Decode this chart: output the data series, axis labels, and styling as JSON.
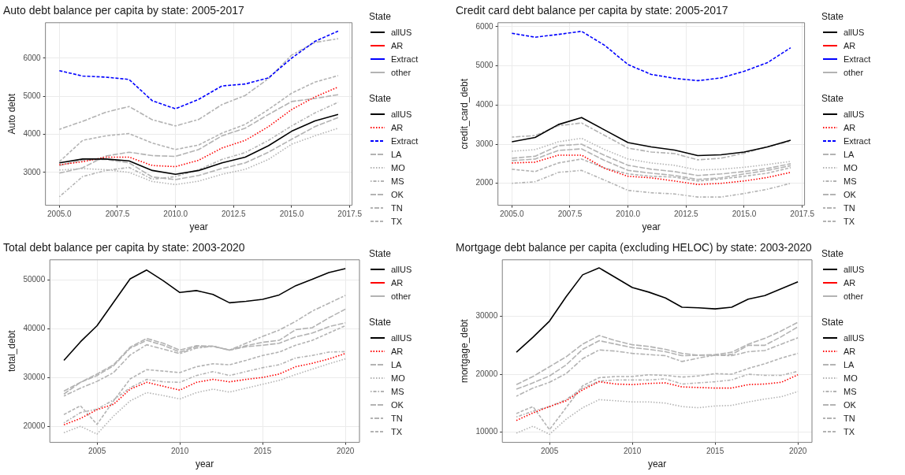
{
  "chart_data": [
    {
      "type": "line",
      "title": "Auto debt balance per capita by state: 2005-2017",
      "xlabel": "year",
      "ylabel": "Auto debt",
      "legend_title": "State",
      "grid": true,
      "legend": "right",
      "x": [
        2005,
        2006,
        2007,
        2008,
        2009,
        2010,
        2011,
        2012,
        2013,
        2014,
        2015,
        2016,
        2017
      ],
      "xlim": [
        2004.4,
        2017.6
      ],
      "xticks": [
        {
          "value": 2005,
          "label": "2005.0"
        },
        {
          "value": 2007.5,
          "label": "2007.5"
        },
        {
          "value": 2010,
          "label": "2010.0"
        },
        {
          "value": 2012.5,
          "label": "2012.5"
        },
        {
          "value": 2015,
          "label": "2015.0"
        },
        {
          "value": 2017.5,
          "label": "2017.5"
        }
      ],
      "ylim": [
        2136,
        6930
      ],
      "yticks": [
        3000,
        4000,
        5000,
        6000
      ],
      "annotations": [
        "other"
      ],
      "series": [
        {
          "name": "allUS",
          "color": "#000000",
          "line_style": "solid",
          "values": [
            3250,
            3350,
            3350,
            3300,
            3050,
            2950,
            3050,
            3250,
            3400,
            3700,
            4080,
            4350,
            4520
          ]
        },
        {
          "name": "AR",
          "color": "#ff0000",
          "line_style": "dotted",
          "values": [
            3200,
            3280,
            3400,
            3400,
            3180,
            3150,
            3320,
            3640,
            3840,
            4200,
            4650,
            4980,
            5240
          ]
        },
        {
          "name": "Extract",
          "color": "#0000ff",
          "line_style": "dashed",
          "values": [
            5670,
            5530,
            5500,
            5440,
            4880,
            4670,
            4920,
            5270,
            5320,
            5480,
            6000,
            6440,
            6710
          ]
        },
        {
          "name": "LA",
          "color": "#b3b3b3",
          "line_style": "longdash",
          "values": [
            2980,
            3120,
            3430,
            3530,
            3440,
            3420,
            3600,
            3960,
            4160,
            4520,
            4860,
            4940,
            5040
          ]
        },
        {
          "name": "MO",
          "color": "#b3b3b3",
          "line_style": "dotted",
          "values": [
            3060,
            3100,
            3070,
            3000,
            2760,
            2680,
            2770,
            2950,
            3080,
            3340,
            3740,
            3960,
            4160
          ]
        },
        {
          "name": "MS",
          "color": "#b3b3b3",
          "line_style": "dotdash",
          "values": [
            2360,
            2890,
            3050,
            3130,
            2820,
            2890,
            3070,
            3340,
            3520,
            3840,
            4220,
            4560,
            4840
          ]
        },
        {
          "name": "OK",
          "color": "#b3b3b3",
          "line_style": "longdash",
          "values": [
            3180,
            3320,
            3340,
            3250,
            2880,
            2810,
            2920,
            3100,
            3250,
            3530,
            3870,
            4200,
            4440
          ]
        },
        {
          "name": "TN",
          "color": "#b3b3b3",
          "line_style": "twodash",
          "values": [
            4130,
            4340,
            4580,
            4730,
            4380,
            4220,
            4390,
            4780,
            5020,
            5460,
            6080,
            6410,
            6510
          ]
        },
        {
          "name": "TX",
          "color": "#b3b3b3",
          "line_style": "dashed",
          "values": [
            3280,
            3840,
            3960,
            4020,
            3770,
            3600,
            3720,
            4030,
            4260,
            4650,
            5080,
            5370,
            5540
          ]
        }
      ]
    },
    {
      "type": "line",
      "title": "Credit card debt balance per capita by state: 2005-2017",
      "xlabel": "year",
      "ylabel": "credit_card_debt",
      "legend_title": "State",
      "grid": true,
      "legend": "right",
      "x": [
        2005,
        2006,
        2007,
        2008,
        2009,
        2010,
        2011,
        2012,
        2013,
        2014,
        2015,
        2016,
        2017
      ],
      "xlim": [
        2004.4,
        2017.6
      ],
      "xticks": [
        {
          "value": 2005,
          "label": "2005.0"
        },
        {
          "value": 2007.5,
          "label": "2007.5"
        },
        {
          "value": 2010,
          "label": "2010.0"
        },
        {
          "value": 2012.5,
          "label": "2012.5"
        },
        {
          "value": 2015,
          "label": "2015.0"
        },
        {
          "value": 2017.5,
          "label": "2017.5"
        }
      ],
      "ylim": [
        1440,
        6100
      ],
      "yticks": [
        2000,
        3000,
        4000,
        5000,
        6000
      ],
      "annotations": [
        "other"
      ],
      "series": [
        {
          "name": "allUS",
          "color": "#000000",
          "line_style": "solid",
          "values": [
            3060,
            3170,
            3500,
            3680,
            3360,
            3040,
            2930,
            2850,
            2710,
            2730,
            2800,
            2930,
            3100
          ]
        },
        {
          "name": "AR",
          "color": "#ff0000",
          "line_style": "dotted",
          "values": [
            2520,
            2540,
            2720,
            2720,
            2380,
            2180,
            2140,
            2060,
            1970,
            2000,
            2060,
            2150,
            2280
          ]
        },
        {
          "name": "Extract",
          "color": "#0000ff",
          "line_style": "dashed",
          "values": [
            5830,
            5730,
            5800,
            5880,
            5520,
            5030,
            4780,
            4680,
            4620,
            4690,
            4860,
            5080,
            5460
          ]
        },
        {
          "name": "LA",
          "color": "#b3b3b3",
          "line_style": "longdash",
          "values": [
            2640,
            2690,
            2960,
            3000,
            2710,
            2460,
            2360,
            2300,
            2200,
            2240,
            2300,
            2380,
            2500
          ]
        },
        {
          "name": "MO",
          "color": "#b3b3b3",
          "line_style": "dotted",
          "values": [
            2820,
            2860,
            3060,
            3150,
            2860,
            2620,
            2520,
            2460,
            2340,
            2360,
            2410,
            2480,
            2560
          ]
        },
        {
          "name": "MS",
          "color": "#b3b3b3",
          "line_style": "dotdash",
          "values": [
            2000,
            2040,
            2280,
            2330,
            2080,
            1820,
            1760,
            1730,
            1650,
            1650,
            1740,
            1850,
            2000
          ]
        },
        {
          "name": "OK",
          "color": "#b3b3b3",
          "line_style": "longdash",
          "values": [
            2580,
            2620,
            2840,
            2880,
            2580,
            2330,
            2260,
            2200,
            2100,
            2140,
            2240,
            2330,
            2450
          ]
        },
        {
          "name": "TN",
          "color": "#b3b3b3",
          "line_style": "twodash",
          "values": [
            3180,
            3220,
            3470,
            3540,
            3220,
            2900,
            2800,
            2760,
            2600,
            2640,
            2770,
            2930,
            3080
          ]
        },
        {
          "name": "TX",
          "color": "#b3b3b3",
          "line_style": "dashed",
          "values": [
            2360,
            2300,
            2520,
            2620,
            2390,
            2240,
            2180,
            2160,
            2060,
            2110,
            2180,
            2260,
            2400
          ]
        }
      ]
    },
    {
      "type": "line",
      "title": "Total debt balance per capita by state: 2003-2020",
      "xlabel": "year",
      "ylabel": "total_debt",
      "legend_title": "State",
      "grid": true,
      "legend": "right",
      "x": [
        2003,
        2004,
        2005,
        2006,
        2007,
        2008,
        2009,
        2010,
        2011,
        2012,
        2013,
        2014,
        2015,
        2016,
        2017,
        2018,
        2019,
        2020
      ],
      "xlim": [
        2002.15,
        2020.85
      ],
      "xticks": [
        2005,
        2010,
        2015,
        2020
      ],
      "ylim": [
        16700,
        54100
      ],
      "yticks": [
        20000,
        30000,
        40000,
        50000
      ],
      "annotations": [
        "other"
      ],
      "series": [
        {
          "name": "allUS",
          "color": "#000000",
          "line_style": "solid",
          "values": [
            33500,
            37300,
            40600,
            45400,
            50200,
            52000,
            49800,
            47400,
            47800,
            47000,
            45300,
            45600,
            46000,
            46900,
            48800,
            50100,
            51500,
            52300
          ]
        },
        {
          "name": "AR",
          "color": "#ff0000",
          "line_style": "dotted",
          "values": [
            20300,
            21600,
            23400,
            24500,
            27600,
            29000,
            28200,
            27400,
            29000,
            29600,
            29100,
            29600,
            30000,
            30700,
            32200,
            32900,
            33800,
            34900
          ]
        },
        {
          "name": "LA",
          "color": "#b3b3b3",
          "line_style": "longdash",
          "values": [
            27200,
            29000,
            30700,
            32600,
            36200,
            38000,
            37000,
            35600,
            36500,
            36400,
            35600,
            36500,
            37200,
            37600,
            39800,
            40200,
            42200,
            44000
          ]
        },
        {
          "name": "MO",
          "color": "#b3b3b3",
          "line_style": "dotted",
          "values": [
            18700,
            20000,
            18400,
            22100,
            25200,
            26900,
            26300,
            25600,
            26900,
            27600,
            27000,
            27800,
            28600,
            29400,
            30600,
            31700,
            32800,
            33800
          ]
        },
        {
          "name": "MS",
          "color": "#b3b3b3",
          "line_style": "dotdash",
          "values": [
            20700,
            22800,
            23500,
            25400,
            27900,
            29600,
            29100,
            29000,
            30400,
            31200,
            30400,
            31200,
            32000,
            32600,
            34000,
            34500,
            35200,
            35300
          ]
        },
        {
          "name": "OK",
          "color": "#b3b3b3",
          "line_style": "longdash",
          "values": [
            26600,
            29000,
            30400,
            32400,
            36000,
            37600,
            36600,
            35200,
            36300,
            36400,
            35600,
            36300,
            36600,
            37000,
            38300,
            39100,
            40400,
            41200
          ]
        },
        {
          "name": "TN",
          "color": "#b3b3b3",
          "line_style": "twodash",
          "values": [
            26200,
            27800,
            29200,
            31000,
            34600,
            36700,
            35800,
            34900,
            36000,
            36400,
            35600,
            37000,
            38400,
            39700,
            41500,
            43600,
            45200,
            46800
          ]
        },
        {
          "name": "TX",
          "color": "#b3b3b3",
          "line_style": "dashed",
          "values": [
            22400,
            24200,
            20400,
            25200,
            29700,
            31600,
            31300,
            31000,
            32200,
            32800,
            32600,
            33500,
            34500,
            35200,
            36600,
            37600,
            39100,
            40600
          ]
        }
      ]
    },
    {
      "type": "line",
      "title": "Mortgage debt balance per capita (excluding HELOC) by state: 2003-2020",
      "xlabel": "year",
      "ylabel": "mortgage_debt",
      "legend_title": "State",
      "grid": true,
      "legend": "right",
      "x": [
        2003,
        2004,
        2005,
        2006,
        2007,
        2008,
        2009,
        2010,
        2011,
        2012,
        2013,
        2014,
        2015,
        2016,
        2017,
        2018,
        2019,
        2020
      ],
      "xlim": [
        2002.15,
        2020.85
      ],
      "xticks": [
        2005,
        2010,
        2015,
        2020
      ],
      "ylim": [
        8200,
        39800
      ],
      "yticks": [
        10000,
        20000,
        30000
      ],
      "annotations": [
        "other"
      ],
      "series": [
        {
          "name": "allUS",
          "color": "#000000",
          "line_style": "solid",
          "values": [
            23800,
            26400,
            29200,
            33400,
            37200,
            38400,
            36700,
            35000,
            34200,
            33200,
            31600,
            31500,
            31300,
            31600,
            33000,
            33600,
            34800,
            36000
          ]
        },
        {
          "name": "AR",
          "color": "#ff0000",
          "line_style": "dotted",
          "values": [
            12000,
            13300,
            14400,
            15400,
            17300,
            18700,
            18300,
            18200,
            18400,
            18500,
            17800,
            17700,
            17600,
            17600,
            18200,
            18300,
            18600,
            19900
          ]
        },
        {
          "name": "LA",
          "color": "#b3b3b3",
          "line_style": "longdash",
          "values": [
            17400,
            18500,
            19700,
            21600,
            24300,
            25800,
            25200,
            24600,
            24300,
            23900,
            23200,
            23300,
            23300,
            23400,
            25000,
            25000,
            26500,
            28200
          ]
        },
        {
          "name": "MO",
          "color": "#b3b3b3",
          "line_style": "dotted",
          "values": [
            9800,
            11000,
            9600,
            12200,
            14200,
            15600,
            15400,
            15200,
            15200,
            15000,
            14400,
            14200,
            14500,
            14600,
            15200,
            15700,
            16100,
            17000
          ]
        },
        {
          "name": "MS",
          "color": "#b3b3b3",
          "line_style": "dotdash",
          "values": [
            12600,
            13600,
            14400,
            15600,
            17600,
            18800,
            19000,
            19000,
            19000,
            19200,
            18300,
            18500,
            18700,
            19000,
            20000,
            19800,
            19800,
            20500
          ]
        },
        {
          "name": "OK",
          "color": "#b3b3b3",
          "line_style": "longdash",
          "values": [
            18200,
            19600,
            21300,
            23000,
            25200,
            26700,
            25800,
            25100,
            24800,
            24300,
            23600,
            23300,
            23400,
            23800,
            25200,
            26200,
            27500,
            29000
          ]
        },
        {
          "name": "TN",
          "color": "#b3b3b3",
          "line_style": "twodash",
          "values": [
            16200,
            17600,
            18600,
            20100,
            22700,
            24200,
            24000,
            23600,
            23400,
            23200,
            22200,
            22800,
            23300,
            23200,
            23900,
            24100,
            25200,
            26300
          ]
        },
        {
          "name": "TX",
          "color": "#b3b3b3",
          "line_style": "dashed",
          "values": [
            13200,
            14400,
            10400,
            14200,
            18000,
            19400,
            19600,
            19600,
            19900,
            19800,
            19500,
            19700,
            20100,
            20000,
            21000,
            21800,
            22800,
            23600
          ]
        }
      ]
    }
  ]
}
